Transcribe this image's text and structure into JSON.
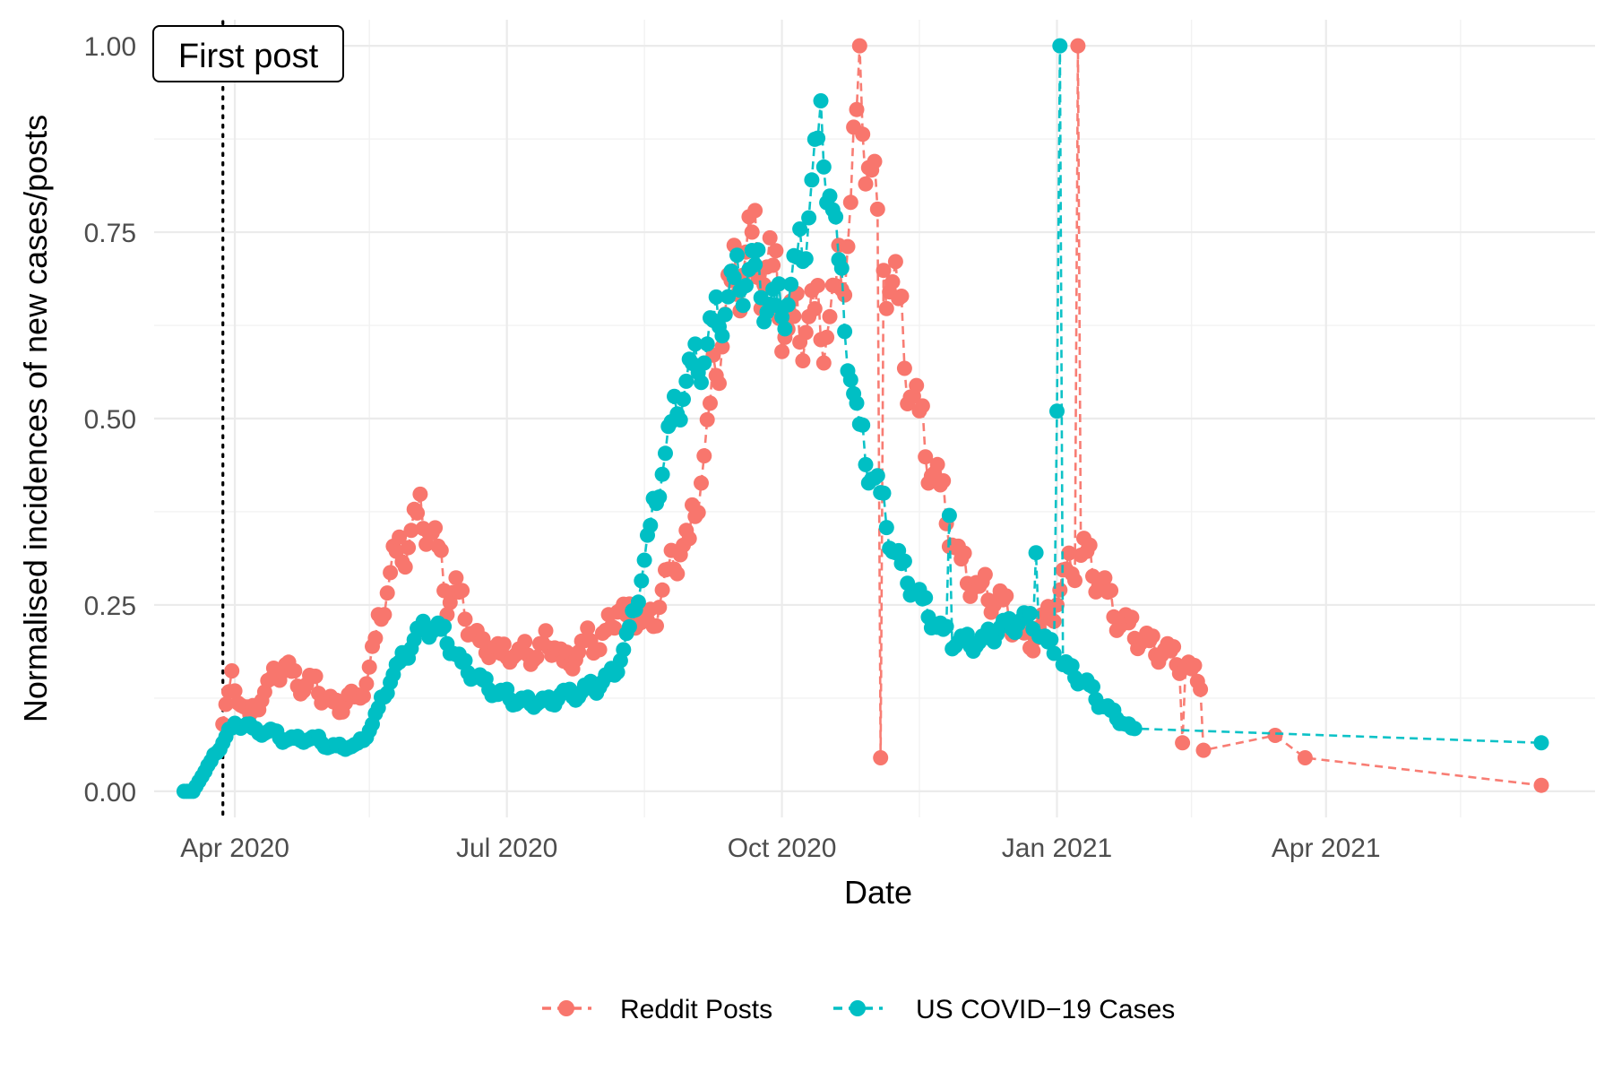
{
  "chart_data": {
    "type": "line",
    "title": "",
    "xlabel": "Date",
    "ylabel": "Normalised incidences of new cases/posts",
    "x_type": "date",
    "xlim": [
      "2020-03-05",
      "2021-06-30"
    ],
    "ylim": [
      -0.035,
      1.035
    ],
    "x_ticks": [
      {
        "date": "2020-04-01",
        "label": "Apr 2020"
      },
      {
        "date": "2020-07-01",
        "label": "Jul 2020"
      },
      {
        "date": "2020-10-01",
        "label": "Oct 2020"
      },
      {
        "date": "2021-01-01",
        "label": "Jan 2021"
      },
      {
        "date": "2021-04-01",
        "label": "Apr 2021"
      }
    ],
    "x_minor_ticks": [
      "2020-05-16",
      "2020-08-16",
      "2020-11-16",
      "2021-02-15",
      "2021-05-16"
    ],
    "y_ticks": [
      {
        "value": 0,
        "label": "0.00"
      },
      {
        "value": 0.25,
        "label": "0.25"
      },
      {
        "value": 0.5,
        "label": "0.50"
      },
      {
        "value": 0.75,
        "label": "0.75"
      },
      {
        "value": 1,
        "label": "1.00"
      }
    ],
    "y_minor_ticks": [
      0.125,
      0.375,
      0.625,
      0.875
    ],
    "grid": true,
    "legend_position": "bottom",
    "annotation": {
      "label": "First post",
      "date": "2020-03-28",
      "line_style": "dotted",
      "label_position": "top-left"
    },
    "x_dates": [
      "2020-03-22",
      "2020-03-29",
      "2020-04-05",
      "2020-04-12",
      "2020-04-19",
      "2020-04-26",
      "2020-05-03",
      "2020-05-10",
      "2020-05-17",
      "2020-05-24",
      "2020-05-31",
      "2020-06-07",
      "2020-06-14",
      "2020-06-21",
      "2020-06-28",
      "2020-07-05",
      "2020-07-12",
      "2020-07-19",
      "2020-07-26",
      "2020-08-02",
      "2020-08-09",
      "2020-08-16",
      "2020-08-23",
      "2020-08-30",
      "2020-09-06",
      "2020-09-13",
      "2020-09-20",
      "2020-09-27",
      "2020-10-04",
      "2020-10-11",
      "2020-10-18",
      "2020-10-25",
      "2020-11-01",
      "2020-11-08",
      "2020-11-15",
      "2020-11-22",
      "2020-11-29",
      "2020-12-06",
      "2020-12-13",
      "2020-12-20",
      "2020-12-27",
      "2021-01-03",
      "2021-01-10",
      "2021-01-17",
      "2021-01-24",
      "2021-01-31",
      "2021-02-07",
      "2021-02-14",
      "2021-02-21",
      "2021-02-28",
      "2021-03-07",
      "2021-03-14",
      "2021-03-21",
      "2021-03-28",
      "2021-04-04",
      "2021-04-11",
      "2021-04-18",
      "2021-04-25",
      "2021-05-02",
      "2021-05-09",
      "2021-05-16",
      "2021-05-23",
      "2021-05-30",
      "2021-06-06"
    ],
    "series": [
      {
        "name": "Reddit Posts",
        "color": "#F8766D",
        "line_style": "dashed",
        "marker": "circle",
        "start_date": "2020-03-28",
        "values": [
          0.09,
          0.15,
          0.12,
          0.1,
          0.12,
          0.14,
          0.16,
          0.17,
          0.15,
          0.14,
          0.15,
          0.13,
          0.12,
          0.11,
          0.13,
          0.12,
          0.15,
          0.2,
          0.26,
          0.31,
          0.32,
          0.35,
          0.37,
          0.36,
          0.32,
          0.26,
          0.27,
          0.24,
          0.21,
          0.19,
          0.2,
          0.18,
          0.19,
          0.18,
          0.19,
          0.18,
          0.2,
          0.2,
          0.17,
          0.18,
          0.19,
          0.21,
          0.19,
          0.22,
          0.25,
          0.23,
          0.24,
          0.22,
          0.23,
          0.27,
          0.3,
          0.33,
          0.33,
          0.41,
          0.47,
          0.58,
          0.64,
          0.68,
          0.72,
          0.73,
          0.71,
          0.7,
          0.66,
          0.62,
          0.62,
          0.64,
          0.63,
          0.63,
          0.64,
          0.7,
          0.79,
          0.94,
          0.87,
          0.76,
          0.71,
          0.67,
          0.59,
          0.53,
          0.48,
          0.44,
          0.4,
          0.36,
          0.31,
          0.29,
          0.28,
          0.27,
          0.26,
          0.25,
          0.23,
          0.21,
          0.2,
          0.22,
          0.23,
          0.26,
          0.29,
          0.31,
          0.32,
          0.3,
          0.28,
          0.25,
          0.23,
          0.22,
          0.21,
          0.2,
          0.19,
          0.19,
          0.18,
          0.17,
          0.16,
          0.15
        ],
        "dips": [
          {
            "date": "2020-11-03",
            "value": 0.045
          },
          {
            "date": "2020-12-06",
            "value": 0.275
          },
          {
            "date": "2021-02-12",
            "value": 0.065
          },
          {
            "date": "2021-02-19",
            "value": 0.055
          },
          {
            "date": "2021-03-15",
            "value": 0.075
          },
          {
            "date": "2021-03-25",
            "value": 0.045
          },
          {
            "date": "2021-06-12",
            "value": 0.008
          }
        ],
        "peak": {
          "date": "2021-01-08",
          "value": 1.0
        }
      },
      {
        "name": "US COVID−19 Cases",
        "color": "#00BFC4",
        "line_style": "dashed",
        "marker": "circle",
        "start_date": "2020-03-15",
        "values": [
          0.0,
          0.0,
          0.02,
          0.04,
          0.06,
          0.08,
          0.09,
          0.09,
          0.08,
          0.08,
          0.08,
          0.07,
          0.07,
          0.07,
          0.07,
          0.07,
          0.06,
          0.06,
          0.06,
          0.06,
          0.07,
          0.09,
          0.12,
          0.15,
          0.17,
          0.19,
          0.21,
          0.22,
          0.22,
          0.21,
          0.19,
          0.17,
          0.16,
          0.15,
          0.14,
          0.13,
          0.13,
          0.12,
          0.12,
          0.12,
          0.12,
          0.12,
          0.13,
          0.13,
          0.13,
          0.14,
          0.14,
          0.15,
          0.16,
          0.19,
          0.23,
          0.29,
          0.35,
          0.42,
          0.47,
          0.52,
          0.55,
          0.57,
          0.59,
          0.62,
          0.65,
          0.67,
          0.69,
          0.7,
          0.69,
          0.66,
          0.64,
          0.66,
          0.69,
          0.73,
          0.82,
          0.88,
          0.82,
          0.7,
          0.6,
          0.5,
          0.45,
          0.42,
          0.38,
          0.33,
          0.3,
          0.28,
          0.26,
          0.24,
          0.22,
          0.21,
          0.2,
          0.2,
          0.2,
          0.2,
          0.21,
          0.22,
          0.22,
          0.23,
          0.23,
          0.22,
          0.2,
          0.19,
          0.17,
          0.16,
          0.15,
          0.14,
          0.12,
          0.11,
          0.1,
          0.09,
          0.08
        ],
        "dips": [
          {
            "date": "2020-11-26",
            "value": 0.37
          },
          {
            "date": "2020-12-25",
            "value": 0.32
          },
          {
            "date": "2021-01-01",
            "value": 0.51
          },
          {
            "date": "2021-06-12",
            "value": 0.065
          }
        ],
        "peak": {
          "date": "2021-01-02",
          "value": 1.0
        }
      }
    ]
  }
}
